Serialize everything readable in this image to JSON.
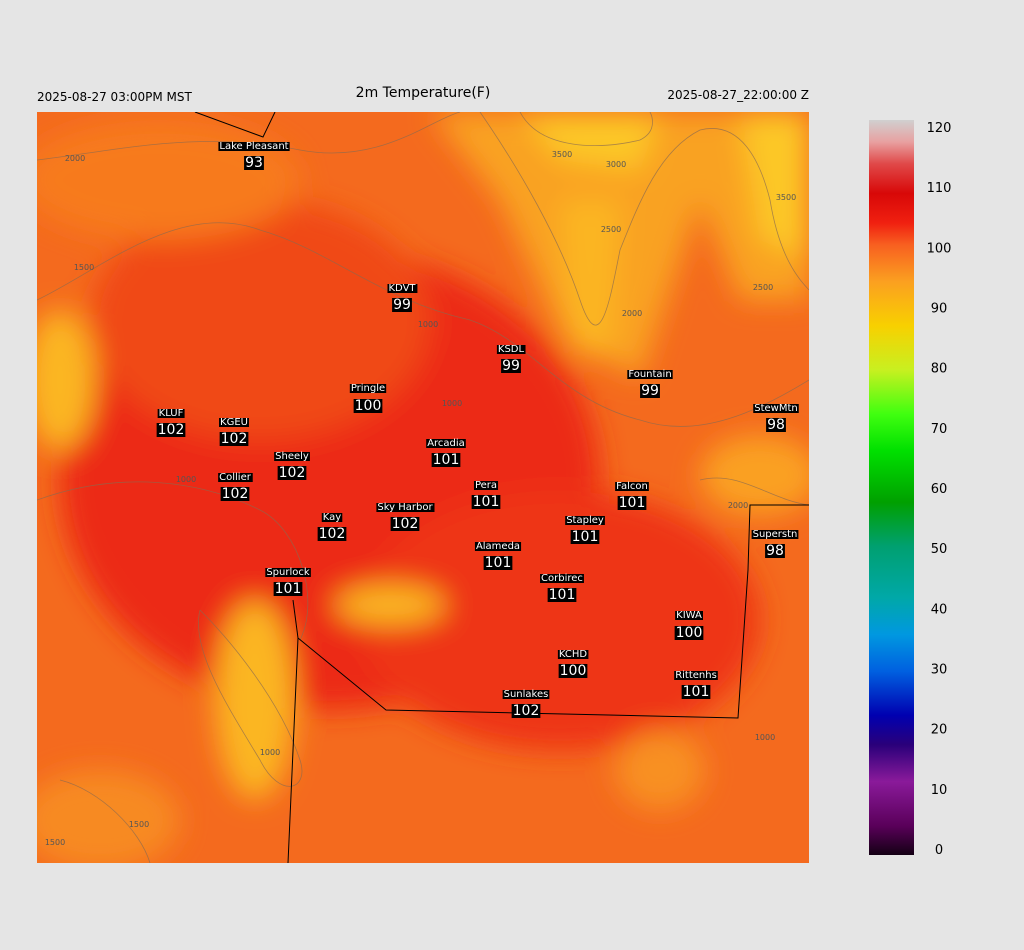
{
  "header": {
    "left": "2025-08-27 03:00PM MST",
    "title": "2m Temperature(F)",
    "right": "2025-08-27_22:00:00 Z"
  },
  "stations": [
    {
      "name": "Lake Pleasant",
      "value": "93"
    },
    {
      "name": "KDVT",
      "value": "99"
    },
    {
      "name": "KSDL",
      "value": "99"
    },
    {
      "name": "Fountain",
      "value": "99"
    },
    {
      "name": "Pringle",
      "value": "100"
    },
    {
      "name": "KLUF",
      "value": "102"
    },
    {
      "name": "KGEU",
      "value": "102"
    },
    {
      "name": "StewMtn",
      "value": "98"
    },
    {
      "name": "Arcadia",
      "value": "101"
    },
    {
      "name": "Sheely",
      "value": "102"
    },
    {
      "name": "Collier",
      "value": "102"
    },
    {
      "name": "Pera",
      "value": "101"
    },
    {
      "name": "Falcon",
      "value": "101"
    },
    {
      "name": "Sky Harbor",
      "value": "102"
    },
    {
      "name": "Kay",
      "value": "102"
    },
    {
      "name": "Stapley",
      "value": "101"
    },
    {
      "name": "Superstn",
      "value": "98"
    },
    {
      "name": "Alameda",
      "value": "101"
    },
    {
      "name": "Spurlock",
      "value": "101"
    },
    {
      "name": "Corbirec",
      "value": "101"
    },
    {
      "name": "KIWA",
      "value": "100"
    },
    {
      "name": "KCHD",
      "value": "100"
    },
    {
      "name": "Rittenhs",
      "value": "101"
    },
    {
      "name": "Sunlakes",
      "value": "102"
    }
  ],
  "colorbar": {
    "ticks": [
      0,
      10,
      20,
      30,
      40,
      50,
      60,
      70,
      80,
      90,
      100,
      110,
      120
    ]
  },
  "contour_labels": [
    "2000",
    "3500",
    "3000",
    "2500",
    "2000",
    "3500",
    "2500",
    "1500",
    "1000",
    "1000",
    "1000",
    "2000",
    "1500",
    "1500",
    "1000",
    "1000"
  ]
}
